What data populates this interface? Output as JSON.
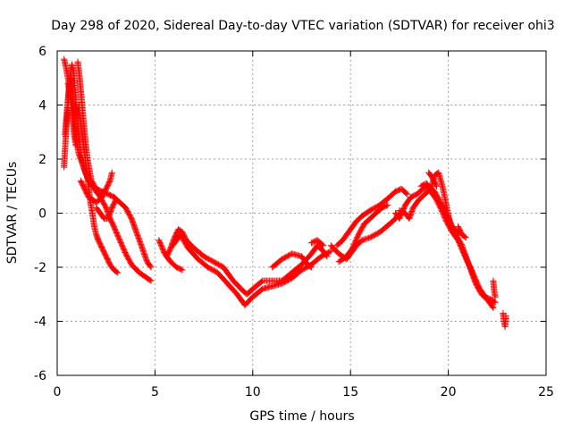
{
  "chart_data": {
    "type": "scatter",
    "title": "Day 298 of 2020, Sidereal Day-to-day VTEC variation (SDTVAR) for receiver ohi3",
    "xlabel": "GPS time / hours",
    "ylabel": "SDTVAR / TECUs",
    "xlim": [
      0,
      25
    ],
    "ylim": [
      -6,
      6
    ],
    "xticks": [
      0,
      5,
      10,
      15,
      20,
      25
    ],
    "yticks": [
      -6,
      -4,
      -2,
      0,
      2,
      4,
      6
    ],
    "x_tick_labels": [
      "0",
      "5",
      "10",
      "15",
      "20",
      "25"
    ],
    "y_tick_labels": [
      "-6",
      "-4",
      "-2",
      "0",
      "2",
      "4",
      "6"
    ],
    "grid": true,
    "marker": "+",
    "series": [
      {
        "name": "SDTVAR",
        "color": "#ff0000",
        "tracks": [
          [
            [
              0.35,
              1.7
            ],
            [
              0.45,
              3.0
            ],
            [
              0.55,
              4.0
            ],
            [
              0.65,
              5.0
            ],
            [
              0.75,
              5.5
            ],
            [
              0.85,
              5.2
            ],
            [
              0.95,
              4.2
            ],
            [
              1.05,
              3.2
            ],
            [
              1.2,
              2.2
            ],
            [
              1.4,
              1.6
            ],
            [
              1.6,
              1.2
            ],
            [
              1.8,
              1.0
            ],
            [
              2.0,
              0.9
            ],
            [
              2.3,
              0.8
            ],
            [
              2.6,
              0.7
            ],
            [
              2.9,
              0.6
            ],
            [
              3.2,
              0.4
            ],
            [
              3.5,
              0.2
            ],
            [
              3.8,
              -0.2
            ],
            [
              4.0,
              -0.6
            ],
            [
              4.3,
              -1.2
            ],
            [
              4.6,
              -1.8
            ],
            [
              4.8,
              -2.0
            ]
          ],
          [
            [
              0.4,
              2.9
            ],
            [
              0.5,
              3.8
            ],
            [
              0.6,
              4.6
            ],
            [
              0.7,
              5.0
            ],
            [
              0.8,
              4.4
            ],
            [
              0.9,
              3.4
            ],
            [
              1.0,
              2.6
            ],
            [
              1.1,
              2.2
            ],
            [
              1.3,
              1.8
            ],
            [
              1.5,
              1.4
            ],
            [
              1.8,
              1.0
            ],
            [
              2.2,
              0.6
            ],
            [
              2.5,
              0.2
            ],
            [
              2.7,
              -0.2
            ],
            [
              2.9,
              -0.5
            ],
            [
              3.2,
              -1.0
            ],
            [
              3.5,
              -1.5
            ],
            [
              3.8,
              -1.9
            ],
            [
              4.2,
              -2.2
            ],
            [
              4.6,
              -2.4
            ],
            [
              4.8,
              -2.5
            ]
          ],
          [
            [
              0.35,
              5.7
            ],
            [
              0.45,
              5.4
            ],
            [
              0.55,
              5.0
            ],
            [
              0.65,
              4.6
            ],
            [
              0.75,
              4.2
            ],
            [
              0.85,
              3.5
            ],
            [
              0.95,
              2.7
            ]
          ],
          [
            [
              0.55,
              4.8
            ],
            [
              0.65,
              4.4
            ],
            [
              0.75,
              3.8
            ],
            [
              0.85,
              3.0
            ],
            [
              0.95,
              2.5
            ]
          ],
          [
            [
              1.05,
              5.6
            ],
            [
              1.15,
              5.0
            ],
            [
              1.25,
              4.2
            ],
            [
              1.35,
              3.4
            ],
            [
              1.45,
              2.6
            ],
            [
              1.55,
              2.0
            ],
            [
              1.65,
              1.6
            ],
            [
              1.75,
              1.2
            ],
            [
              1.9,
              1.0
            ],
            [
              2.1,
              0.8
            ],
            [
              2.3,
              0.6
            ]
          ],
          [
            [
              1.1,
              4.0
            ],
            [
              1.2,
              3.4
            ],
            [
              1.3,
              2.8
            ],
            [
              1.4,
              2.2
            ],
            [
              1.5,
              1.6
            ],
            [
              1.6,
              1.0
            ],
            [
              1.7,
              0.4
            ],
            [
              1.8,
              0.0
            ],
            [
              1.9,
              -0.5
            ],
            [
              2.0,
              -0.8
            ],
            [
              2.1,
              -1.0
            ],
            [
              2.3,
              -1.3
            ],
            [
              2.5,
              -1.6
            ],
            [
              2.7,
              -1.9
            ],
            [
              2.9,
              -2.1
            ],
            [
              3.1,
              -2.2
            ]
          ],
          [
            [
              1.2,
              1.2
            ],
            [
              1.4,
              0.9
            ],
            [
              1.6,
              0.6
            ],
            [
              1.8,
              0.5
            ],
            [
              2.0,
              0.4
            ],
            [
              2.3,
              0.6
            ],
            [
              2.5,
              0.9
            ],
            [
              2.7,
              1.2
            ],
            [
              2.8,
              1.5
            ]
          ],
          [
            [
              2.0,
              0.2
            ],
            [
              2.2,
              0.0
            ],
            [
              2.4,
              -0.2
            ],
            [
              2.6,
              -0.2
            ],
            [
              2.8,
              0.2
            ],
            [
              3.0,
              0.5
            ]
          ],
          [
            [
              5.2,
              -1.0
            ],
            [
              5.5,
              -1.5
            ],
            [
              5.8,
              -1.8
            ],
            [
              6.1,
              -2.0
            ],
            [
              6.4,
              -2.1
            ]
          ],
          [
            [
              5.6,
              -1.6
            ],
            [
              5.8,
              -1.3
            ],
            [
              6.0,
              -0.9
            ],
            [
              6.2,
              -0.6
            ],
            [
              6.4,
              -0.7
            ],
            [
              6.6,
              -1.0
            ],
            [
              7.0,
              -1.3
            ],
            [
              7.5,
              -1.6
            ],
            [
              8.0,
              -1.8
            ],
            [
              8.5,
              -2.0
            ],
            [
              9.0,
              -2.5
            ],
            [
              9.4,
              -2.8
            ],
            [
              9.7,
              -3.0
            ],
            [
              10.0,
              -2.8
            ],
            [
              10.5,
              -2.5
            ],
            [
              11.0,
              -2.5
            ],
            [
              11.5,
              -2.5
            ],
            [
              12.0,
              -2.2
            ],
            [
              12.5,
              -1.9
            ],
            [
              13.0,
              -1.5
            ],
            [
              13.3,
              -1.2
            ],
            [
              13.6,
              -1.4
            ],
            [
              13.8,
              -1.6
            ]
          ],
          [
            [
              5.9,
              -1.2
            ],
            [
              6.3,
              -0.8
            ],
            [
              6.7,
              -1.3
            ],
            [
              7.2,
              -1.7
            ],
            [
              7.7,
              -2.0
            ],
            [
              8.2,
              -2.2
            ],
            [
              8.7,
              -2.6
            ],
            [
              9.2,
              -3.0
            ],
            [
              9.6,
              -3.4
            ],
            [
              10.0,
              -3.1
            ],
            [
              10.5,
              -2.8
            ],
            [
              11.0,
              -2.7
            ],
            [
              11.5,
              -2.6
            ],
            [
              12.0,
              -2.4
            ],
            [
              12.5,
              -2.1
            ],
            [
              13.0,
              -1.9
            ],
            [
              13.5,
              -1.6
            ],
            [
              14.0,
              -1.4
            ]
          ],
          [
            [
              11.0,
              -2.0
            ],
            [
              11.5,
              -1.7
            ],
            [
              12.0,
              -1.5
            ],
            [
              12.5,
              -1.6
            ],
            [
              12.8,
              -1.9
            ],
            [
              13.0,
              -2.0
            ]
          ],
          [
            [
              13.0,
              -1.1
            ],
            [
              13.3,
              -1.0
            ],
            [
              13.6,
              -1.2
            ]
          ],
          [
            [
              14.0,
              -1.2
            ],
            [
              14.4,
              -1.5
            ],
            [
              14.8,
              -1.7
            ],
            [
              15.0,
              -1.5
            ],
            [
              15.3,
              -1.2
            ],
            [
              15.6,
              -1.0
            ],
            [
              16.0,
              -0.9
            ],
            [
              16.5,
              -0.7
            ],
            [
              17.0,
              -0.4
            ],
            [
              17.3,
              -0.2
            ],
            [
              17.5,
              0.0
            ]
          ],
          [
            [
              14.3,
              -1.2
            ],
            [
              14.6,
              -1.0
            ],
            [
              15.0,
              -0.6
            ],
            [
              15.3,
              -0.3
            ],
            [
              15.6,
              -0.1
            ],
            [
              16.0,
              0.1
            ],
            [
              16.5,
              0.3
            ],
            [
              17.0,
              0.6
            ],
            [
              17.3,
              0.8
            ],
            [
              17.6,
              0.9
            ],
            [
              17.9,
              0.7
            ]
          ],
          [
            [
              14.4,
              -1.8
            ],
            [
              14.8,
              -1.6
            ],
            [
              15.1,
              -1.3
            ],
            [
              15.4,
              -0.8
            ],
            [
              15.7,
              -0.4
            ],
            [
              16.0,
              -0.2
            ],
            [
              16.3,
              0.0
            ],
            [
              16.6,
              0.2
            ],
            [
              16.9,
              0.3
            ]
          ],
          [
            [
              17.3,
              0.0
            ],
            [
              17.5,
              -0.2
            ],
            [
              17.8,
              0.3
            ],
            [
              18.1,
              0.6
            ],
            [
              18.4,
              0.7
            ],
            [
              18.7,
              0.9
            ],
            [
              19.0,
              1.0
            ],
            [
              19.3,
              0.8
            ],
            [
              19.6,
              0.4
            ],
            [
              19.9,
              0.0
            ],
            [
              20.2,
              -0.5
            ],
            [
              20.5,
              -0.8
            ]
          ],
          [
            [
              17.5,
              0.1
            ],
            [
              17.8,
              0.0
            ],
            [
              18.0,
              -0.2
            ],
            [
              18.2,
              0.2
            ],
            [
              18.5,
              0.5
            ],
            [
              18.8,
              0.7
            ],
            [
              19.1,
              0.9
            ],
            [
              19.3,
              1.4
            ],
            [
              19.5,
              1.5
            ],
            [
              19.7,
              1.0
            ],
            [
              19.9,
              0.3
            ],
            [
              20.1,
              -0.4
            ],
            [
              20.4,
              -0.8
            ],
            [
              20.7,
              -1.2
            ],
            [
              21.0,
              -1.8
            ],
            [
              21.3,
              -2.3
            ],
            [
              21.6,
              -2.8
            ],
            [
              21.9,
              -3.1
            ],
            [
              22.2,
              -3.2
            ],
            [
              22.4,
              -3.3
            ]
          ],
          [
            [
              18.6,
              1.0
            ],
            [
              18.9,
              1.1
            ],
            [
              19.1,
              0.8
            ],
            [
              19.4,
              0.5
            ],
            [
              19.6,
              0.2
            ],
            [
              19.9,
              -0.3
            ],
            [
              20.2,
              -0.7
            ],
            [
              20.5,
              -1.0
            ],
            [
              20.8,
              -1.5
            ],
            [
              21.1,
              -2.0
            ],
            [
              21.4,
              -2.6
            ],
            [
              21.7,
              -3.0
            ],
            [
              22.0,
              -3.2
            ],
            [
              22.3,
              -3.5
            ]
          ],
          [
            [
              19.0,
              1.5
            ],
            [
              19.2,
              1.3
            ],
            [
              19.4,
              1.0
            ]
          ],
          [
            [
              20.5,
              -0.5
            ],
            [
              20.7,
              -0.8
            ],
            [
              20.9,
              -0.9
            ]
          ],
          [
            [
              22.3,
              -2.5
            ],
            [
              22.35,
              -2.9
            ],
            [
              22.4,
              -3.1
            ]
          ],
          [
            [
              22.8,
              -3.7
            ],
            [
              22.85,
              -4.0
            ],
            [
              22.9,
              -4.2
            ],
            [
              22.95,
              -3.8
            ]
          ]
        ]
      }
    ]
  }
}
